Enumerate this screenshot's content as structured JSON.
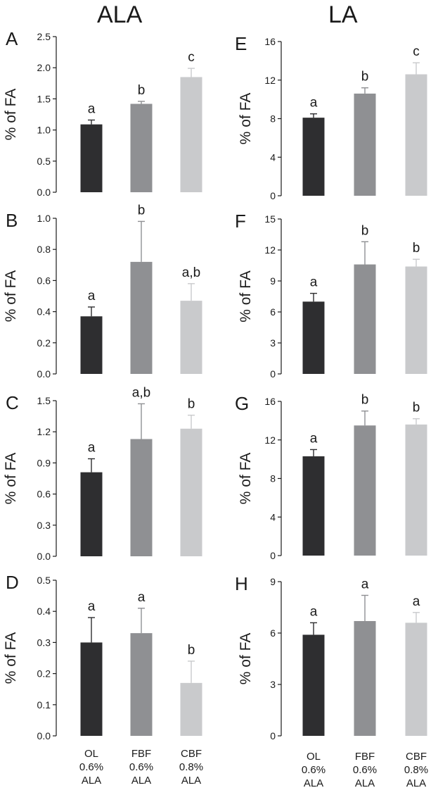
{
  "columns": {
    "left_title": "ALA",
    "right_title": "LA"
  },
  "colors": {
    "OL": "#2e2e30",
    "FBF": "#8f9093",
    "CBF": "#c9cacc"
  },
  "chart_data": [
    {
      "type": "bar",
      "panel": "A",
      "column": "ALA",
      "ylabel": "% of FA",
      "categories": [
        "OL 0.6% ALA",
        "FBF 0.6% ALA",
        "CBF 0.8% ALA"
      ],
      "values": [
        1.09,
        1.42,
        1.85
      ],
      "errors": [
        0.07,
        0.04,
        0.14
      ],
      "letters": [
        "a",
        "b",
        "c"
      ],
      "ylim": [
        0,
        2.5
      ],
      "ticks": [
        "0.0",
        "0.5",
        "1.0",
        "1.5",
        "2.0",
        "2.5"
      ]
    },
    {
      "type": "bar",
      "panel": "B",
      "column": "ALA",
      "ylabel": "% of FA",
      "categories": [
        "OL 0.6% ALA",
        "FBF 0.6% ALA",
        "CBF 0.8% ALA"
      ],
      "values": [
        0.37,
        0.72,
        0.47
      ],
      "errors": [
        0.06,
        0.26,
        0.11
      ],
      "letters": [
        "a",
        "b",
        "a,b"
      ],
      "ylim": [
        0,
        1.0
      ],
      "ticks": [
        "0.0",
        "0.2",
        "0.4",
        "0.6",
        "0.8",
        "1.0"
      ]
    },
    {
      "type": "bar",
      "panel": "C",
      "column": "ALA",
      "ylabel": "% of FA",
      "categories": [
        "OL 0.6% ALA",
        "FBF 0.6% ALA",
        "CBF 0.8% ALA"
      ],
      "values": [
        0.81,
        1.13,
        1.23
      ],
      "errors": [
        0.13,
        0.34,
        0.13
      ],
      "letters": [
        "a",
        "a,b",
        "b"
      ],
      "ylim": [
        0,
        1.5
      ],
      "ticks": [
        "0.0",
        "0.3",
        "0.6",
        "0.9",
        "1.2",
        "1.5"
      ]
    },
    {
      "type": "bar",
      "panel": "D",
      "column": "ALA",
      "ylabel": "% of FA",
      "categories": [
        "OL 0.6% ALA",
        "FBF 0.6% ALA",
        "CBF 0.8% ALA"
      ],
      "values": [
        0.3,
        0.33,
        0.17
      ],
      "errors": [
        0.08,
        0.08,
        0.07
      ],
      "letters": [
        "a",
        "a",
        "b"
      ],
      "ylim": [
        0,
        0.5
      ],
      "ticks": [
        "0.0",
        "0.1",
        "0.2",
        "0.3",
        "0.4",
        "0.5"
      ]
    },
    {
      "type": "bar",
      "panel": "E",
      "column": "LA",
      "ylabel": "% of FA",
      "categories": [
        "OL 0.6% ALA",
        "FBF 0.6% ALA",
        "CBF 0.8% ALA"
      ],
      "values": [
        8.1,
        10.6,
        12.6
      ],
      "errors": [
        0.4,
        0.6,
        1.2
      ],
      "letters": [
        "a",
        "b",
        "c"
      ],
      "ylim": [
        0,
        16
      ],
      "ticks": [
        "0",
        "4",
        "8",
        "12",
        "16"
      ]
    },
    {
      "type": "bar",
      "panel": "F",
      "column": "LA",
      "ylabel": "% of FA",
      "categories": [
        "OL 0.6% ALA",
        "FBF 0.6% ALA",
        "CBF 0.8% ALA"
      ],
      "values": [
        7.0,
        10.6,
        10.4
      ],
      "errors": [
        0.8,
        2.2,
        0.7
      ],
      "letters": [
        "a",
        "b",
        "b"
      ],
      "ylim": [
        0,
        15
      ],
      "ticks": [
        "0",
        "3",
        "6",
        "9",
        "12",
        "15"
      ]
    },
    {
      "type": "bar",
      "panel": "G",
      "column": "LA",
      "ylabel": "% of FA",
      "categories": [
        "OL 0.6% ALA",
        "FBF 0.6% ALA",
        "CBF 0.8% ALA"
      ],
      "values": [
        10.3,
        13.5,
        13.6
      ],
      "errors": [
        0.7,
        1.5,
        0.6
      ],
      "letters": [
        "a",
        "b",
        "b"
      ],
      "ylim": [
        0,
        16
      ],
      "ticks": [
        "0",
        "4",
        "8",
        "12",
        "16"
      ]
    },
    {
      "type": "bar",
      "panel": "H",
      "column": "LA",
      "ylabel": "% of FA",
      "categories": [
        "OL 0.6% ALA",
        "FBF 0.6% ALA",
        "CBF 0.8% ALA"
      ],
      "values": [
        5.9,
        6.7,
        6.6
      ],
      "errors": [
        0.7,
        1.5,
        0.6
      ],
      "letters": [
        "a",
        "a",
        "a"
      ],
      "ylim": [
        0,
        9
      ],
      "ticks": [
        "0",
        "3",
        "6",
        "9"
      ]
    }
  ],
  "x_labels": {
    "left": [
      {
        "lines": [
          "OL",
          "0.6%",
          "ALA"
        ]
      },
      {
        "lines": [
          "FBF",
          "0.6%",
          "ALA"
        ]
      },
      {
        "lines": [
          "CBF",
          "0.8%",
          "ALA"
        ]
      }
    ],
    "right": [
      {
        "lines": [
          "OL",
          "0.6%",
          "ALA"
        ]
      },
      {
        "lines": [
          "FBF",
          "0.6%",
          "ALA"
        ]
      },
      {
        "lines": [
          "CBF",
          "0.8%",
          "ALA"
        ]
      }
    ]
  }
}
